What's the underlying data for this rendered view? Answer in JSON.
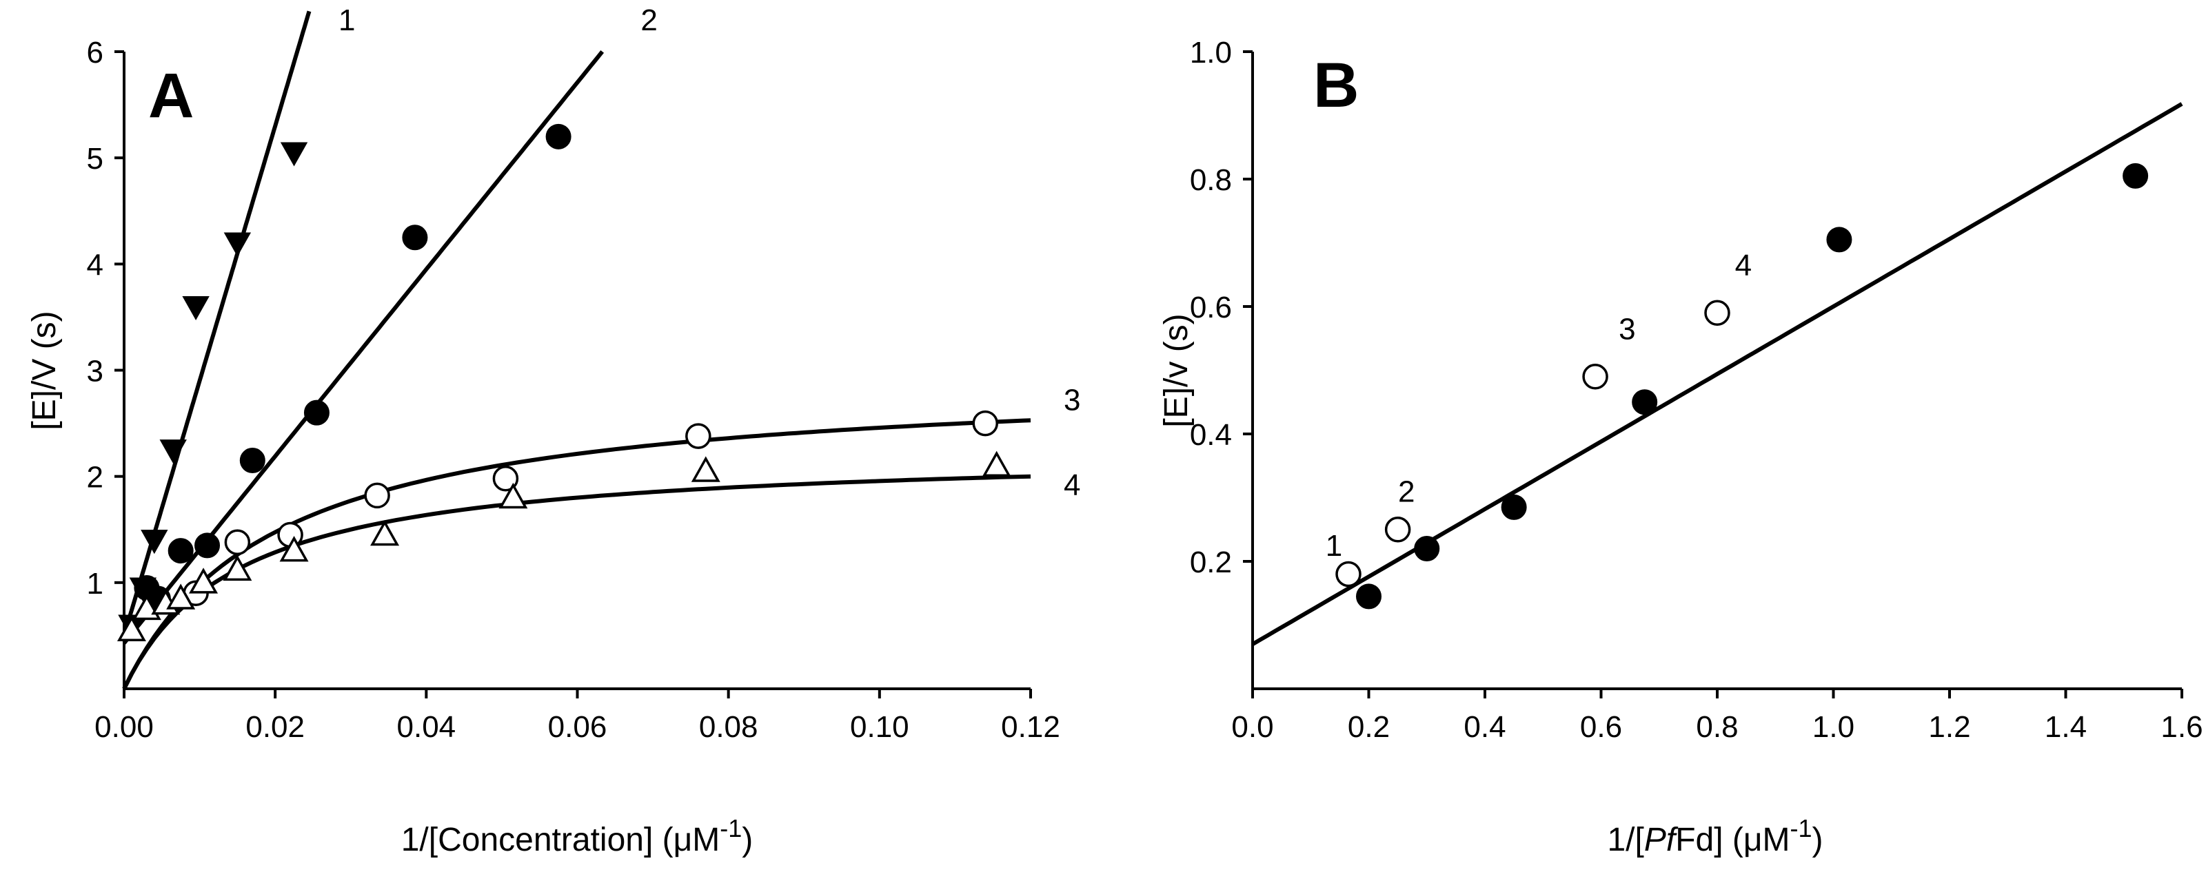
{
  "chart_data": [
    {
      "panel": "A",
      "type": "scatter",
      "ylabel": "[E]/V (s)",
      "xlabel_parts": [
        "1/[Concentration] (",
        "μM",
        "-1",
        ")"
      ],
      "xlim": [
        0,
        0.12
      ],
      "ylim": [
        0,
        6
      ],
      "xticks": [
        0,
        0.02,
        0.04,
        0.06,
        0.08,
        0.1,
        0.12
      ],
      "xtick_labels": [
        "0.00",
        "0.02",
        "0.04",
        "0.06",
        "0.08",
        "0.10",
        "0.12"
      ],
      "yticks": [
        1,
        2,
        3,
        4,
        5,
        6
      ],
      "ytick_labels": [
        "1",
        "2",
        "3",
        "4",
        "5",
        "6"
      ],
      "series": [
        {
          "name": "1",
          "marker": "triangle-down-filled",
          "x": [
            0.001,
            0.0025,
            0.004,
            0.0065,
            0.0095,
            0.015,
            0.0225
          ],
          "y": [
            0.6,
            0.95,
            1.4,
            2.25,
            3.6,
            4.2,
            5.05
          ],
          "fit": {
            "kind": "linear",
            "intercept": 0.5,
            "slope": 240,
            "x_end": 0.0245
          },
          "label_at": [
            0.0295,
            6.3
          ]
        },
        {
          "name": "2",
          "marker": "circle-filled",
          "x": [
            0.003,
            0.0045,
            0.0075,
            0.011,
            0.017,
            0.0255,
            0.0385,
            0.0575
          ],
          "y": [
            0.95,
            0.85,
            1.3,
            1.35,
            2.15,
            2.6,
            4.25,
            5.2
          ],
          "fit": {
            "kind": "linear",
            "intercept": 0.43,
            "slope": 88,
            "x_end": 0.0633
          },
          "label_at": [
            0.0695,
            6.3
          ]
        },
        {
          "name": "3",
          "marker": "circle-open",
          "x": [
            0.0095,
            0.015,
            0.022,
            0.0335,
            0.0505,
            0.076,
            0.114
          ],
          "y": [
            0.9,
            1.38,
            1.45,
            1.82,
            1.98,
            2.38,
            2.5
          ],
          "fit": {
            "kind": "hyperbolic",
            "vmax": 2.95,
            "k": 0.02,
            "x_end": 0.12
          },
          "label_at": [
            0.1255,
            2.72
          ]
        },
        {
          "name": "4",
          "marker": "triangle-up-open",
          "x": [
            0.001,
            0.003,
            0.0055,
            0.0075,
            0.0105,
            0.015,
            0.0225,
            0.0345,
            0.0515,
            0.077,
            0.1155
          ],
          "y": [
            0.55,
            0.75,
            0.8,
            0.85,
            1.0,
            1.12,
            1.3,
            1.45,
            1.8,
            2.05,
            2.1
          ],
          "fit": {
            "kind": "hyperbolic",
            "vmax": 2.25,
            "k": 0.015,
            "x_end": 0.12
          },
          "label_at": [
            0.1255,
            1.92
          ]
        }
      ]
    },
    {
      "panel": "B",
      "type": "scatter",
      "ylabel": "[E]/v (s)",
      "xlabel_parts": [
        "1/[",
        "Pf",
        "Fd] (",
        "μM",
        "-1",
        ")"
      ],
      "xlim": [
        0,
        1.6
      ],
      "ylim": [
        0,
        1.0
      ],
      "xticks": [
        0,
        0.2,
        0.4,
        0.6,
        0.8,
        1.0,
        1.2,
        1.4,
        1.6
      ],
      "xtick_labels": [
        "0.0",
        "0.2",
        "0.4",
        "0.6",
        "0.8",
        "1.0",
        "1.2",
        "1.4",
        "1.6"
      ],
      "yticks": [
        0.2,
        0.4,
        0.6,
        0.8,
        1.0
      ],
      "ytick_labels": [
        "0.2",
        "0.4",
        "0.6",
        "0.8",
        "1.0"
      ],
      "series": [
        {
          "name": "filled",
          "marker": "circle-filled",
          "x": [
            0.2,
            0.3,
            0.45,
            0.675,
            1.01,
            1.52
          ],
          "y": [
            0.145,
            0.22,
            0.285,
            0.45,
            0.705,
            0.805
          ]
        },
        {
          "name": "open",
          "marker": "circle-open",
          "x": [
            0.165,
            0.25,
            0.59,
            0.8
          ],
          "y": [
            0.18,
            0.25,
            0.49,
            0.59
          ],
          "point_labels": [
            "1",
            "2",
            "3",
            "4"
          ],
          "point_label_at": [
            [
              0.14,
              0.225
            ],
            [
              0.265,
              0.31
            ],
            [
              0.645,
              0.565
            ],
            [
              0.845,
              0.665
            ]
          ]
        }
      ],
      "fit": {
        "kind": "linear",
        "intercept": 0.07,
        "slope": 0.53,
        "x_start": 0,
        "x_end": 1.6
      }
    }
  ]
}
